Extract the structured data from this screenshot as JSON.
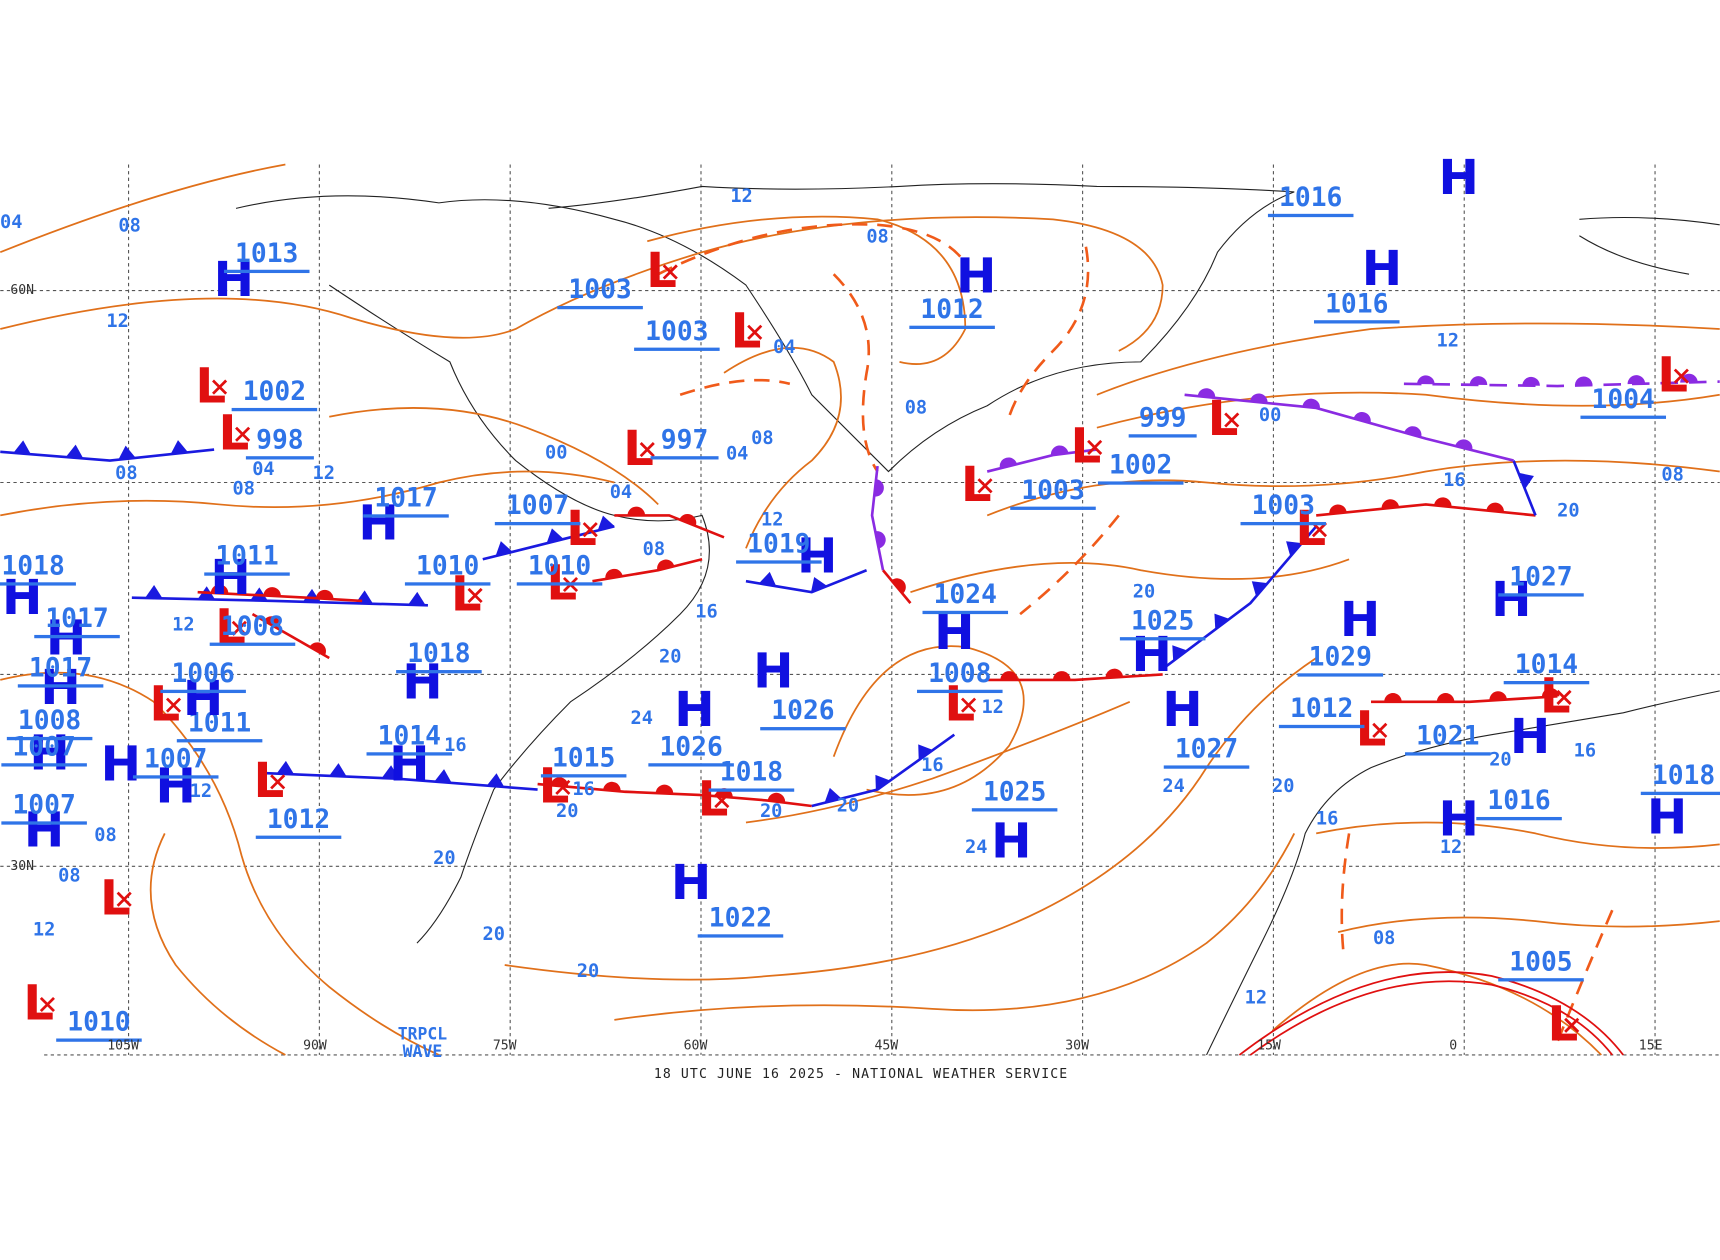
{
  "footer": "18 UTC JUNE 16 2025 - NATIONAL WEATHER SERVICE",
  "longitudes": [
    "105W",
    "90W",
    "75W",
    "60W",
    "45W",
    "30W",
    "15W",
    "0",
    "15E"
  ],
  "latitudes": [
    "60N",
    "30N"
  ],
  "annotation": [
    "TRPCL",
    "WAVE"
  ],
  "centers": [
    {
      "symbol": "L",
      "pressure": "1003"
    },
    {
      "symbol": "L",
      "pressure": "1003"
    },
    {
      "symbol": "L",
      "pressure": "1002"
    },
    {
      "symbol": "L",
      "pressure": "998"
    },
    {
      "symbol": "L",
      "pressure": "997"
    },
    {
      "symbol": "L",
      "pressure": "1007"
    },
    {
      "symbol": "L",
      "pressure": "1010"
    },
    {
      "symbol": "L",
      "pressure": "1010"
    },
    {
      "symbol": "L",
      "pressure": "1003"
    },
    {
      "symbol": "L",
      "pressure": "1002"
    },
    {
      "symbol": "L",
      "pressure": "999"
    },
    {
      "symbol": "L",
      "pressure": "1003"
    },
    {
      "symbol": "L",
      "pressure": "1008"
    },
    {
      "symbol": "L",
      "pressure": "1012"
    },
    {
      "symbol": "L",
      "pressure": "1014"
    },
    {
      "symbol": "L",
      "pressure": "1004"
    },
    {
      "symbol": "L",
      "pressure": "1012"
    },
    {
      "symbol": "L",
      "pressure": "1015"
    },
    {
      "symbol": "L",
      "pressure": "1018"
    },
    {
      "symbol": "L",
      "pressure": "1011"
    },
    {
      "symbol": "L",
      "pressure": "1008"
    },
    {
      "symbol": "L"
    },
    {
      "symbol": "L",
      "pressure": "1010"
    },
    {
      "symbol": "L",
      "pressure": "1005"
    },
    {
      "symbol": "H",
      "pressure": "1013"
    },
    {
      "symbol": "H",
      "pressure": "1012"
    },
    {
      "symbol": "H",
      "pressure": "1016"
    },
    {
      "symbol": "H",
      "pressure": "1016"
    },
    {
      "symbol": "H",
      "pressure": "1017"
    },
    {
      "symbol": "H",
      "pressure": "1011"
    },
    {
      "symbol": "H",
      "pressure": "1018"
    },
    {
      "symbol": "H",
      "pressure": "1024"
    },
    {
      "symbol": "H",
      "pressure": "1025"
    },
    {
      "symbol": "H",
      "pressure": "1029"
    },
    {
      "symbol": "H",
      "pressure": "1027"
    },
    {
      "symbol": "H",
      "pressure": "1026"
    },
    {
      "symbol": "H",
      "pressure": "1026"
    },
    {
      "symbol": "H",
      "pressure": "1027"
    },
    {
      "symbol": "H",
      "pressure": "1025"
    },
    {
      "symbol": "H",
      "pressure": "1022"
    },
    {
      "symbol": "H",
      "pressure": "1021"
    },
    {
      "symbol": "H",
      "pressure": "1016"
    },
    {
      "symbol": "H",
      "pressure": "1018"
    },
    {
      "symbol": "H",
      "pressure": "1019"
    },
    {
      "symbol": "H",
      "pressure": "1018"
    },
    {
      "symbol": "H",
      "pressure": "1017"
    },
    {
      "symbol": "H",
      "pressure": "1017"
    },
    {
      "symbol": "H",
      "pressure": "1008"
    },
    {
      "symbol": "H",
      "pressure": "1007"
    },
    {
      "symbol": "H",
      "pressure": "1007"
    },
    {
      "symbol": "H",
      "pressure": "1007"
    },
    {
      "symbol": "H",
      "pressure": "1006"
    },
    {
      "symbol": "H",
      "pressure": "1014"
    }
  ],
  "isobar_labels": [
    "08",
    "04",
    "12",
    "08",
    "08",
    "12",
    "04",
    "12",
    "08",
    "04",
    "08",
    "04",
    "00",
    "04",
    "08",
    "12",
    "16",
    "20",
    "24",
    "08",
    "12",
    "00",
    "16",
    "20",
    "20",
    "12",
    "16",
    "20",
    "20",
    "24",
    "24",
    "20",
    "16",
    "12",
    "16",
    "20",
    "20",
    "20",
    "20",
    "12",
    "08",
    "12",
    "08",
    "12",
    "16",
    "16",
    "20",
    "12",
    "08",
    "08"
  ]
}
